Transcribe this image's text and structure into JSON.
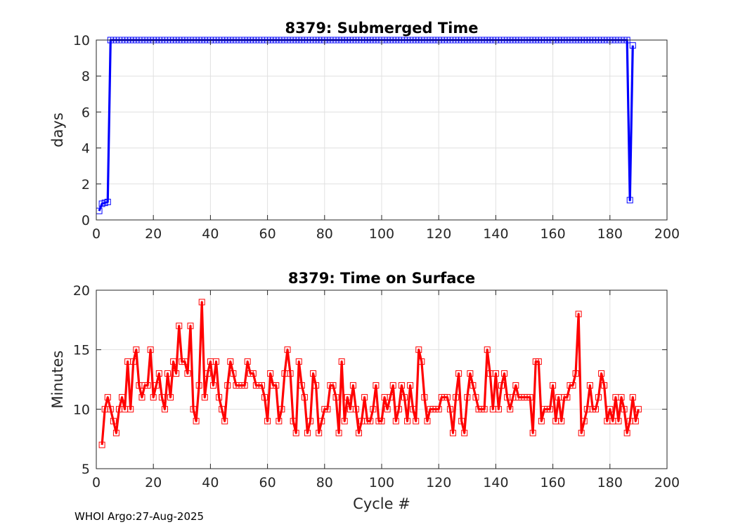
{
  "footer": "WHOI Argo:27-Aug-2025",
  "chart_data": [
    {
      "type": "line",
      "title": "8379: Submerged Time",
      "xlabel": "",
      "ylabel": "days",
      "xlim": [
        0,
        200
      ],
      "ylim": [
        0,
        10
      ],
      "xticks": [
        0,
        20,
        40,
        60,
        80,
        100,
        120,
        140,
        160,
        180,
        200
      ],
      "yticks": [
        0,
        2,
        4,
        6,
        8,
        10
      ],
      "grid": true,
      "color": "#0000ff",
      "marker": "square",
      "series": [
        {
          "name": "Submerged Time",
          "x_start": 1,
          "values": [
            0.5,
            0.9,
            0.95,
            1.0,
            10.0,
            10.0,
            10.0,
            10.0,
            10.0,
            10.0,
            10.0,
            10.0,
            10.0,
            10.0,
            10.0,
            10.0,
            10.0,
            10.0,
            10.0,
            10.0,
            10.0,
            10.0,
            10.0,
            10.0,
            10.0,
            10.0,
            10.0,
            10.0,
            10.0,
            10.0,
            10.0,
            10.0,
            10.0,
            10.0,
            10.0,
            10.0,
            10.0,
            10.0,
            10.0,
            10.0,
            10.0,
            10.0,
            10.0,
            10.0,
            10.0,
            10.0,
            10.0,
            10.0,
            10.0,
            10.0,
            10.0,
            10.0,
            10.0,
            10.0,
            10.0,
            10.0,
            10.0,
            10.0,
            10.0,
            10.0,
            10.0,
            10.0,
            10.0,
            10.0,
            10.0,
            10.0,
            10.0,
            10.0,
            10.0,
            10.0,
            10.0,
            10.0,
            10.0,
            10.0,
            10.0,
            10.0,
            10.0,
            10.0,
            10.0,
            10.0,
            10.0,
            10.0,
            10.0,
            10.0,
            10.0,
            10.0,
            10.0,
            10.0,
            10.0,
            10.0,
            10.0,
            10.0,
            10.0,
            10.0,
            10.0,
            10.0,
            10.0,
            10.0,
            10.0,
            10.0,
            10.0,
            10.0,
            10.0,
            10.0,
            10.0,
            10.0,
            10.0,
            10.0,
            10.0,
            10.0,
            10.0,
            10.0,
            10.0,
            10.0,
            10.0,
            10.0,
            10.0,
            10.0,
            10.0,
            10.0,
            10.0,
            10.0,
            10.0,
            10.0,
            10.0,
            10.0,
            10.0,
            10.0,
            10.0,
            10.0,
            10.0,
            10.0,
            10.0,
            10.0,
            10.0,
            10.0,
            10.0,
            10.0,
            10.0,
            10.0,
            10.0,
            10.0,
            10.0,
            10.0,
            10.0,
            10.0,
            10.0,
            10.0,
            10.0,
            10.0,
            10.0,
            10.0,
            10.0,
            10.0,
            10.0,
            10.0,
            10.0,
            10.0,
            10.0,
            10.0,
            10.0,
            10.0,
            10.0,
            10.0,
            10.0,
            10.0,
            10.0,
            10.0,
            10.0,
            10.0,
            10.0,
            10.0,
            10.0,
            10.0,
            10.0,
            10.0,
            10.0,
            10.0,
            10.0,
            10.0,
            10.0,
            10.0,
            10.0,
            10.0,
            10.0,
            10.0,
            1.1,
            9.7
          ]
        }
      ]
    },
    {
      "type": "line",
      "title": "8379: Time on Surface",
      "xlabel": "Cycle #",
      "ylabel": "Minutes",
      "xlim": [
        0,
        200
      ],
      "ylim": [
        5,
        20
      ],
      "xticks": [
        0,
        20,
        40,
        60,
        80,
        100,
        120,
        140,
        160,
        180,
        200
      ],
      "yticks": [
        5,
        10,
        15,
        20
      ],
      "grid": true,
      "color": "#ff0000",
      "marker": "square",
      "series": [
        {
          "name": "Time on Surface",
          "x_start": 2,
          "values": [
            7,
            10,
            11,
            10,
            9,
            8,
            10,
            11,
            10,
            14,
            10,
            14,
            15,
            12,
            11,
            12,
            12,
            15,
            11,
            12,
            13,
            11,
            10,
            13,
            11,
            14,
            13,
            17,
            14,
            14,
            13,
            17,
            10,
            9,
            12,
            19,
            11,
            13,
            14,
            12,
            14,
            11,
            10,
            9,
            12,
            14,
            13,
            12,
            12,
            12,
            12,
            14,
            13,
            13,
            12,
            12,
            12,
            11,
            9,
            13,
            12,
            12,
            9,
            10,
            13,
            15,
            13,
            9,
            8,
            14,
            12,
            11,
            8,
            9,
            13,
            12,
            8,
            9,
            10,
            10,
            12,
            12,
            11,
            8,
            14,
            9,
            11,
            10,
            12,
            10,
            8,
            9,
            11,
            9,
            9,
            10,
            12,
            9,
            9,
            11,
            10,
            11,
            12,
            9,
            10,
            12,
            11,
            9,
            12,
            10,
            9,
            15,
            14,
            11,
            9,
            10,
            10,
            10,
            10,
            11,
            11,
            11,
            10,
            8,
            11,
            13,
            9,
            8,
            11,
            13,
            12,
            11,
            10,
            10,
            10,
            15,
            13,
            10,
            13,
            10,
            12,
            13,
            11,
            10,
            11,
            12,
            11,
            11,
            11,
            11,
            11,
            8,
            14,
            14,
            9,
            10,
            10,
            10,
            12,
            9,
            11,
            9,
            11,
            11,
            12,
            12,
            13,
            18,
            8,
            9,
            10,
            12,
            10,
            10,
            11,
            13,
            12,
            9,
            10,
            9,
            11,
            9,
            11,
            10,
            8,
            9,
            11,
            9,
            10
          ]
        }
      ]
    }
  ]
}
